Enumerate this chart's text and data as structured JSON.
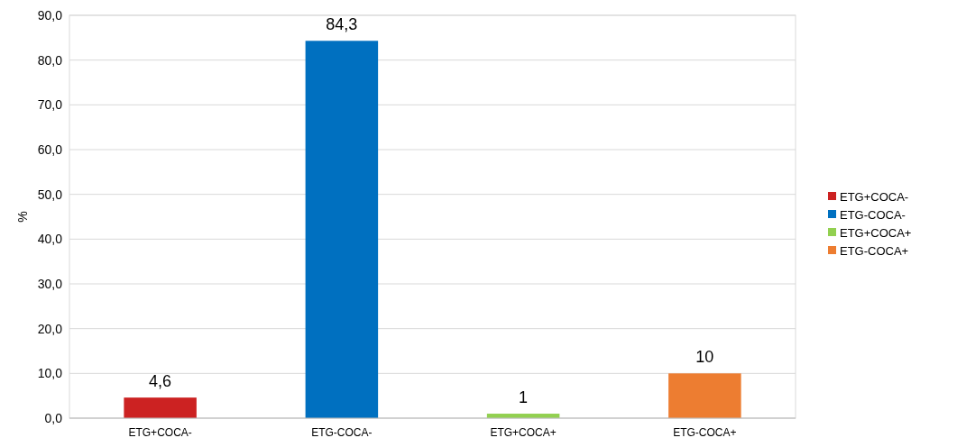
{
  "chart_data": {
    "type": "bar",
    "ylabel": "%",
    "stacked": true,
    "categories": [
      "ETG+COCA-",
      "ETG-COCA-",
      "ETG+COCA+",
      "ETG-COCA+"
    ],
    "series": [
      {
        "name": "ETG+COCA-",
        "color": "#cc2222",
        "values": [
          4.6,
          null,
          null,
          null
        ],
        "value_labels": [
          "4,6",
          null,
          null,
          null
        ]
      },
      {
        "name": "ETG-COCA-",
        "color": "#0070c0",
        "values": [
          null,
          84.3,
          null,
          null
        ],
        "value_labels": [
          null,
          "84,3",
          null,
          null
        ]
      },
      {
        "name": "ETG+COCA+",
        "color": "#92d050",
        "values": [
          null,
          null,
          1,
          null
        ],
        "value_labels": [
          null,
          null,
          "1",
          null
        ]
      },
      {
        "name": "ETG-COCA+",
        "color": "#ed7d31",
        "values": [
          null,
          null,
          null,
          10
        ],
        "value_labels": [
          null,
          null,
          null,
          "10"
        ]
      }
    ],
    "ylim": [
      0,
      90
    ],
    "yticks": [
      {
        "value": 0,
        "label": "0,0"
      },
      {
        "value": 10,
        "label": "10,0"
      },
      {
        "value": 20,
        "label": "20,0"
      },
      {
        "value": 30,
        "label": "30,0"
      },
      {
        "value": 40,
        "label": "40,0"
      },
      {
        "value": 50,
        "label": "50,0"
      },
      {
        "value": 60,
        "label": "60,0"
      },
      {
        "value": 70,
        "label": "70,0"
      },
      {
        "value": 80,
        "label": "80,0"
      },
      {
        "value": 90,
        "label": "90,0"
      }
    ],
    "grid": "y",
    "legend": "right"
  }
}
